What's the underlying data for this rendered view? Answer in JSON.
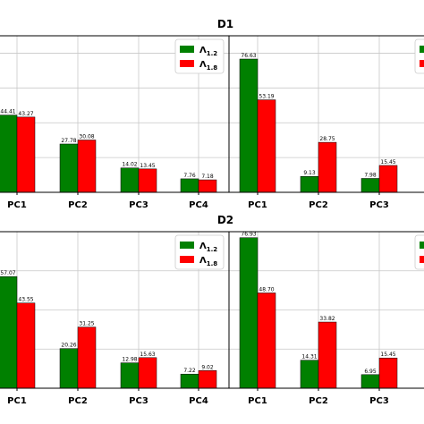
{
  "colors": {
    "green": "#008000",
    "red": "#ff0000"
  },
  "chart_data": [
    {
      "type": "bar",
      "title": "D1",
      "categories": [
        "PC1",
        "PC2",
        "PC3",
        "PC4"
      ],
      "series": [
        {
          "name": "Λ1.2",
          "values": [
            44.41,
            27.78,
            14.02,
            7.76
          ]
        },
        {
          "name": "Λ1.8",
          "values": [
            43.27,
            30.08,
            13.45,
            7.18
          ]
        }
      ],
      "ylim": [
        0,
        90
      ],
      "grid": true,
      "legend": "top-right"
    },
    {
      "type": "bar",
      "title": "",
      "categories": [
        "PC1",
        "PC2",
        "PC3"
      ],
      "series": [
        {
          "name": "Λ1.2",
          "values": [
            76.63,
            9.13,
            7.98
          ]
        },
        {
          "name": "Λ1.8",
          "values": [
            53.19,
            28.75,
            15.45
          ]
        }
      ],
      "ylim": [
        0,
        90
      ],
      "grid": true,
      "legend": "top-right"
    },
    {
      "type": "bar",
      "title": "D2",
      "categories": [
        "PC1",
        "PC2",
        "PC3",
        "PC4"
      ],
      "series": [
        {
          "name": "Λ1.2",
          "values": [
            57.07,
            20.26,
            12.98,
            7.22
          ]
        },
        {
          "name": "Λ1.8",
          "values": [
            43.55,
            31.25,
            15.63,
            9.02
          ]
        }
      ],
      "ylim": [
        0,
        80
      ],
      "grid": true,
      "legend": "top-right"
    },
    {
      "type": "bar",
      "title": "",
      "categories": [
        "PC1",
        "PC2",
        "PC3"
      ],
      "series": [
        {
          "name": "Λ1.2",
          "values": [
            76.93,
            14.31,
            6.95
          ]
        },
        {
          "name": "Λ1.8",
          "values": [
            48.7,
            33.82,
            15.45
          ]
        }
      ],
      "ylim": [
        0,
        80
      ],
      "grid": true,
      "legend": "top-right"
    }
  ]
}
